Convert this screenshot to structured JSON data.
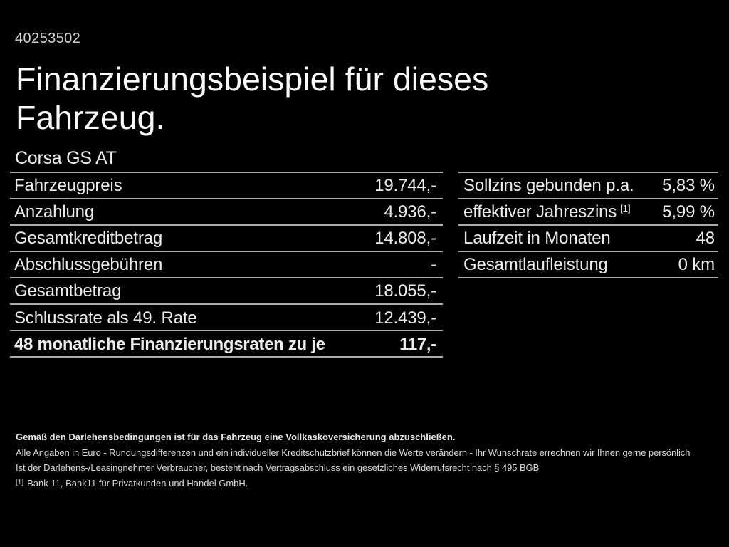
{
  "page": {
    "id_number": "40253502",
    "title_line1": "Finanzierungsbeispiel für dieses",
    "title_line2": "Fahrzeug.",
    "model": "Corsa GS AT"
  },
  "left_table": {
    "rows": [
      {
        "label": "Fahrzeugpreis",
        "value": "19.744,-",
        "bold": false
      },
      {
        "label": "Anzahlung",
        "value": "4.936,-",
        "bold": false
      },
      {
        "label": "Gesamtkreditbetrag",
        "value": "14.808,-",
        "bold": false
      },
      {
        "label": "Abschlussgebühren",
        "value": "-",
        "bold": false
      },
      {
        "label": "Gesamtbetrag",
        "value": "18.055,-",
        "bold": false
      },
      {
        "label": "Schlussrate als 49. Rate",
        "value": "12.439,-",
        "bold": false
      },
      {
        "label": "48 monatliche Finanzierungsraten zu je",
        "value": "117,-",
        "bold": true
      }
    ]
  },
  "right_table": {
    "rows": [
      {
        "label": "Sollzins gebunden p.a.",
        "sup": "",
        "value": "5,83 %",
        "bold": false
      },
      {
        "label": "effektiver Jahreszins",
        "sup": "[1]",
        "value": "5,99 %",
        "bold": false
      },
      {
        "label": "Laufzeit in Monaten",
        "sup": "",
        "value": "48",
        "bold": false
      },
      {
        "label": "Gesamtlaufleistung",
        "sup": "",
        "value": "0 km",
        "bold": false
      }
    ]
  },
  "footer": {
    "bold_note": "Gemäß den Darlehensbedingungen ist für das Fahrzeug eine Vollkaskoversicherung abzuschließen.",
    "line1": "Alle Angaben in Euro - Rundungsdifferenzen und ein individueller Kreditschutzbrief können die Werte verändern - Ihr Wunschrate errechnen wir Ihnen gerne persönlich",
    "line2": "Ist der Darlehens-/Leasingnehmer Verbraucher, besteht nach Vertragsabschluss ein gesetzliches Widerrufsrecht nach § 495 BGB",
    "footnote_marker": "[1]",
    "footnote": "Bank 11, Bank11 für Privatkunden und Handel GmbH."
  },
  "colors": {
    "background": "#000000",
    "text": "#f0f0f0",
    "separator_line": "#ababab"
  }
}
